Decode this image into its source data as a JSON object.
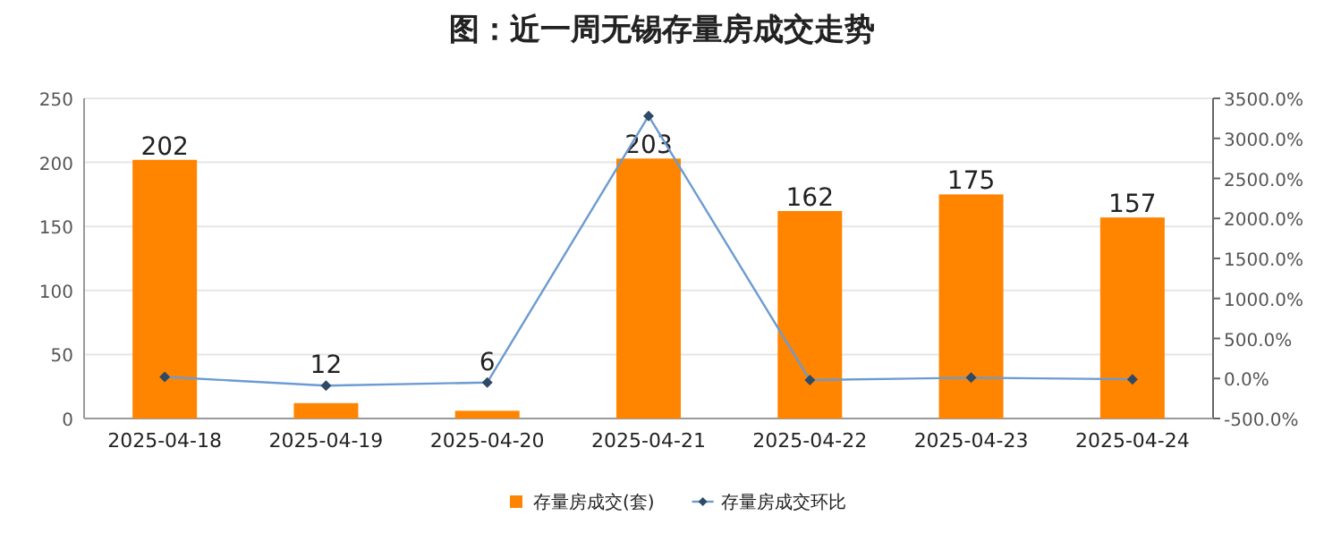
{
  "chart_data": {
    "type": "bar",
    "title": "图：近一周无锡存量房成交走势",
    "categories": [
      "2025-04-18",
      "2025-04-19",
      "2025-04-20",
      "2025-04-21",
      "2025-04-22",
      "2025-04-23",
      "2025-04-24"
    ],
    "series": [
      {
        "name": "存量房成交(套)",
        "color": "#ff8400",
        "values": [
          202,
          12,
          6,
          203,
          162,
          175,
          157
        ],
        "value_labels": [
          "202",
          "12",
          "6",
          "203",
          "162",
          "175",
          "157"
        ]
      },
      {
        "name": "存量房成交环比",
        "type": "line",
        "axis": "y2",
        "color": "#6b9bd1",
        "marker": "diamond",
        "values": [
          20,
          -90,
          -50,
          3280,
          -20,
          10,
          -10
        ]
      }
    ],
    "ylim": [
      0,
      250
    ],
    "yticks": [
      0,
      50,
      100,
      150,
      200,
      250
    ],
    "y2lim": [
      -500,
      3500
    ],
    "y2ticks": [
      {
        "value": -500,
        "label": "-500.0%"
      },
      {
        "value": 0,
        "label": "0.0%"
      },
      {
        "value": 500,
        "label": "500.0%"
      },
      {
        "value": 1000,
        "label": "1000.0%"
      },
      {
        "value": 1500,
        "label": "1500.0%"
      },
      {
        "value": 2000,
        "label": "2000.0%"
      },
      {
        "value": 2500,
        "label": "2500.0%"
      },
      {
        "value": 3000,
        "label": "3000.0%"
      },
      {
        "value": 3500,
        "label": "3500.0%"
      }
    ],
    "grid": "y",
    "legend": "bottom"
  }
}
